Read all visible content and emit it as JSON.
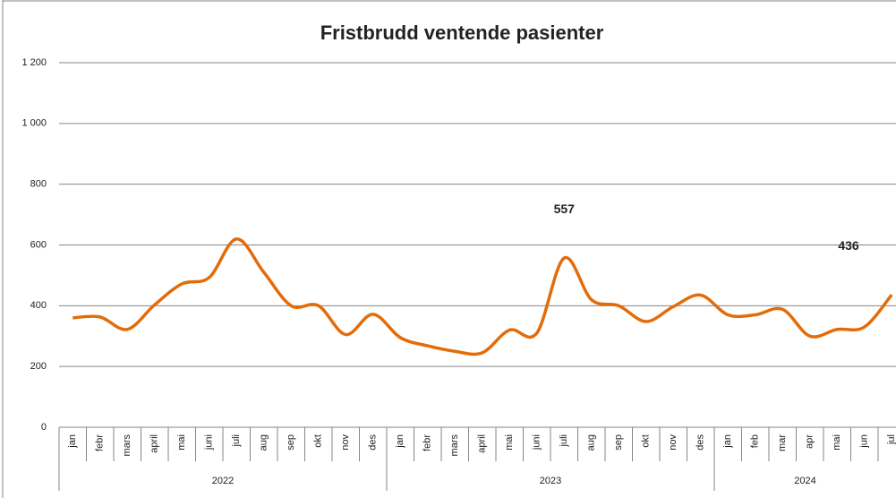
{
  "chart_data": {
    "type": "line",
    "title": "Fristbrudd ventende pasienter",
    "groups": [
      {
        "name": "2022",
        "categories": [
          "jan",
          "febr",
          "mars",
          "april",
          "mai",
          "juni",
          "juli",
          "aug",
          "sep",
          "okt",
          "nov",
          "des"
        ]
      },
      {
        "name": "2023",
        "categories": [
          "jan",
          "febr",
          "mars",
          "april",
          "mai",
          "juni",
          "juli",
          "aug",
          "sep",
          "okt",
          "nov",
          "des"
        ]
      },
      {
        "name": "2024",
        "categories": [
          "jan",
          "feb",
          "mar",
          "apr",
          "mai",
          "jun",
          "jul"
        ]
      }
    ],
    "series": [
      {
        "color": "#e36c0a",
        "values": [
          360,
          363,
          322,
          403,
          472,
          493,
          620,
          510,
          400,
          400,
          305,
          372,
          295,
          268,
          250,
          245,
          320,
          310,
          557,
          420,
          400,
          348,
          397,
          435,
          370,
          370,
          388,
          300,
          322,
          330,
          436
        ]
      }
    ],
    "labeled_points": [
      18,
      30
    ],
    "ylim": [
      0,
      1200
    ],
    "yticks": [
      0,
      200,
      400,
      600,
      800,
      {
        "value": 1000,
        "label": "1 000"
      },
      {
        "value": 1200,
        "label": "1 200"
      }
    ],
    "grid": true
  }
}
